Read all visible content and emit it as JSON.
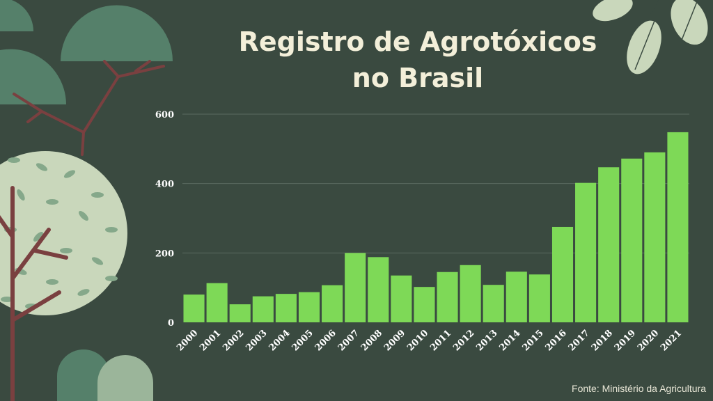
{
  "title_line1": "Registro de Agrotóxicos",
  "title_line2": "no Brasil",
  "source": "Fonte: Ministério da Agricultura",
  "colors": {
    "background": "#3a4a40",
    "bar": "#7ed957",
    "grid": "#5b6b60",
    "title": "#f3efd9"
  },
  "chart_data": {
    "type": "bar",
    "title": "Registro de Agrotóxicos no Brasil",
    "xlabel": "",
    "ylabel": "",
    "ylim": [
      0,
      600
    ],
    "yticks": [
      0,
      200,
      400,
      600
    ],
    "grid": true,
    "categories": [
      "2000",
      "2001",
      "2002",
      "2003",
      "2004",
      "2005",
      "2006",
      "2007",
      "2008",
      "2009",
      "2010",
      "2011",
      "2012",
      "2013",
      "2014",
      "2015",
      "2016",
      "2017",
      "2018",
      "2019",
      "2020",
      "2021"
    ],
    "values": [
      80,
      113,
      52,
      75,
      82,
      87,
      107,
      200,
      188,
      135,
      102,
      145,
      165,
      108,
      146,
      138,
      275,
      402,
      447,
      472,
      490,
      548
    ]
  }
}
